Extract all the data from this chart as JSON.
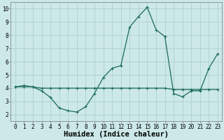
{
  "xlabel": "Humidex (Indice chaleur)",
  "xlim": [
    -0.5,
    23.5
  ],
  "ylim": [
    1.5,
    10.5
  ],
  "xticks": [
    0,
    1,
    2,
    3,
    4,
    5,
    6,
    7,
    8,
    9,
    10,
    11,
    12,
    13,
    14,
    15,
    16,
    17,
    18,
    19,
    20,
    21,
    22,
    23
  ],
  "yticks": [
    2,
    3,
    4,
    5,
    6,
    7,
    8,
    9,
    10
  ],
  "line1_x": [
    0,
    1,
    2,
    3,
    4,
    5,
    6,
    7,
    8,
    9,
    10,
    11,
    12,
    13,
    14,
    15,
    16,
    17,
    18,
    19,
    20,
    21,
    22,
    23
  ],
  "line1_y": [
    4.1,
    4.2,
    4.1,
    3.8,
    3.3,
    2.5,
    2.3,
    2.2,
    2.6,
    3.6,
    4.8,
    5.5,
    5.7,
    8.6,
    9.4,
    10.1,
    8.4,
    7.9,
    3.6,
    3.35,
    3.8,
    3.8,
    5.5,
    6.6
  ],
  "line2_x": [
    0,
    1,
    2,
    3,
    4,
    5,
    6,
    7,
    8,
    9,
    10,
    11,
    12,
    13,
    14,
    15,
    16,
    17,
    18,
    19,
    20,
    21,
    22,
    23
  ],
  "line2_y": [
    4.1,
    4.1,
    4.1,
    4.0,
    4.0,
    4.0,
    4.0,
    4.0,
    4.0,
    4.0,
    4.0,
    4.0,
    4.0,
    4.0,
    4.0,
    4.0,
    4.0,
    4.0,
    3.9,
    3.9,
    3.9,
    3.9,
    3.9,
    3.9
  ],
  "line_color": "#1a6b5a",
  "bg_color": "#cce8e8",
  "grid_color": "#aacccc",
  "tick_label_fontsize": 5.5,
  "xlabel_fontsize": 7.5
}
